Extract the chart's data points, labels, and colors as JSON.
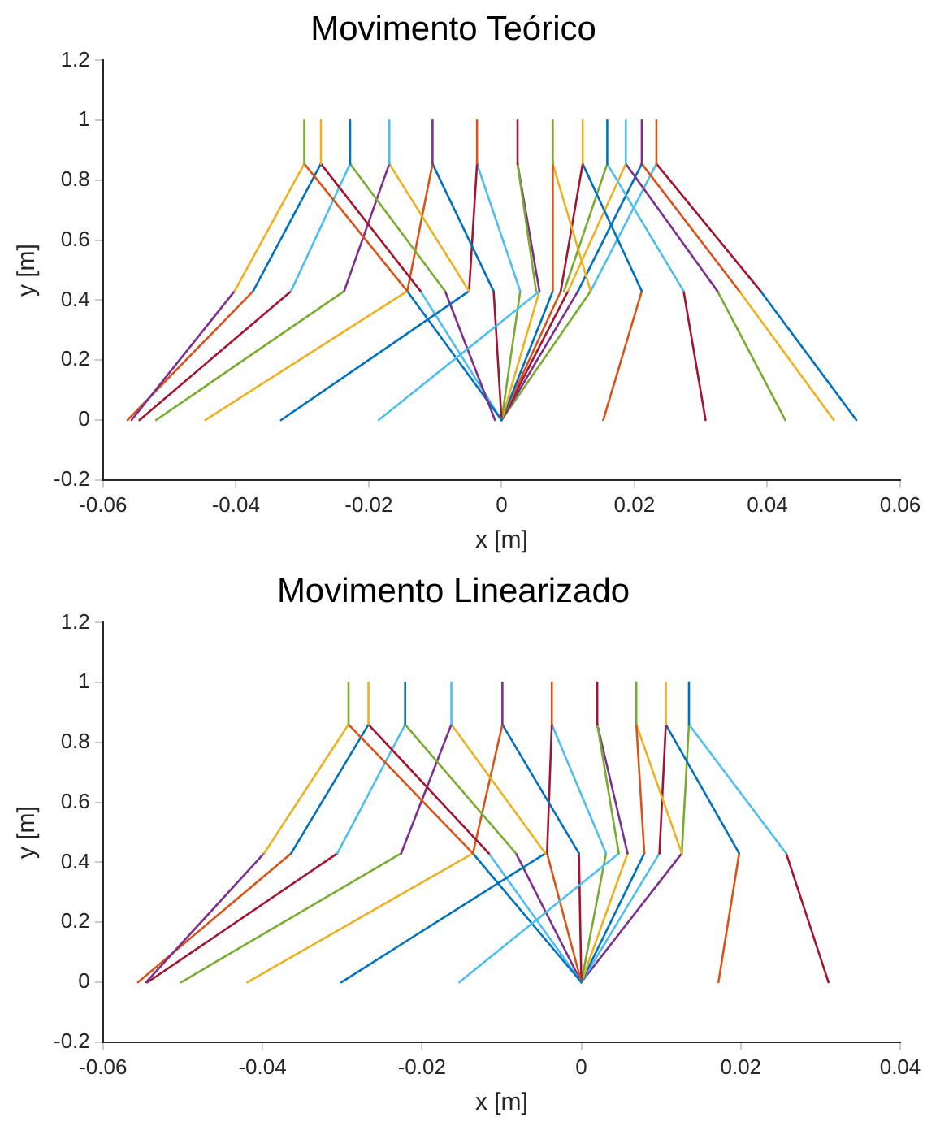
{
  "chart_data": [
    {
      "type": "line",
      "title": "Movimento Teórico",
      "xlabel": "x [m]",
      "ylabel": "y [m]",
      "xlim": [
        -0.06,
        0.06
      ],
      "xticks": [
        -0.06,
        -0.04,
        -0.02,
        0,
        0.02,
        0.04,
        0.06
      ],
      "ylim": [
        -0.2,
        1.2
      ],
      "yticks": [
        -0.2,
        0,
        0.2,
        0.4,
        0.6,
        0.8,
        1,
        1.2
      ],
      "grid": false,
      "legend": false,
      "marker": "none",
      "line_style": "solid",
      "series": [
        {
          "color": "#77ac30",
          "x": [
            -0.0297,
            -0.0297
          ],
          "values": [
            1,
            0.855
          ]
        },
        {
          "color": "#edb120",
          "x": [
            -0.0272,
            -0.0272
          ],
          "values": [
            1,
            0.855
          ]
        },
        {
          "color": "#0072bd",
          "x": [
            -0.0228,
            -0.0228
          ],
          "values": [
            1,
            0.855
          ]
        },
        {
          "color": "#4dbeee",
          "x": [
            -0.0169,
            -0.0169
          ],
          "values": [
            1,
            0.855
          ]
        },
        {
          "color": "#7e2f8e",
          "x": [
            -0.0104,
            -0.0104
          ],
          "values": [
            1,
            0.855
          ]
        },
        {
          "color": "#d95319",
          "x": [
            -0.0037,
            -0.0037
          ],
          "values": [
            1,
            0.855
          ]
        },
        {
          "color": "#a2142f",
          "x": [
            0.0024,
            0.0024
          ],
          "values": [
            1,
            0.855
          ]
        },
        {
          "color": "#77ac30",
          "x": [
            0.0077,
            0.0077
          ],
          "values": [
            1,
            0.855
          ]
        },
        {
          "color": "#edb120",
          "x": [
            0.0122,
            0.0122
          ],
          "values": [
            1,
            0.855
          ]
        },
        {
          "color": "#0072bd",
          "x": [
            0.0159,
            0.0159
          ],
          "values": [
            1,
            0.855
          ]
        },
        {
          "color": "#4dbeee",
          "x": [
            0.0187,
            0.0187
          ],
          "values": [
            1,
            0.855
          ]
        },
        {
          "color": "#7e2f8e",
          "x": [
            0.0211,
            0.0211
          ],
          "values": [
            1,
            0.855
          ]
        },
        {
          "color": "#d95319",
          "x": [
            0.0233,
            0.0233
          ],
          "values": [
            1,
            0.855
          ]
        },
        {
          "color": "#edb120",
          "x": [
            -0.0297,
            -0.0402
          ],
          "values": [
            0.855,
            0.43
          ]
        },
        {
          "color": "#d95319",
          "x": [
            -0.0297,
            -0.0142
          ],
          "values": [
            0.855,
            0.43
          ]
        },
        {
          "color": "#0072bd",
          "x": [
            -0.0272,
            -0.0374
          ],
          "values": [
            0.855,
            0.43
          ]
        },
        {
          "color": "#a2142f",
          "x": [
            -0.0272,
            -0.0122
          ],
          "values": [
            0.855,
            0.43
          ]
        },
        {
          "color": "#4dbeee",
          "x": [
            -0.0228,
            -0.0317
          ],
          "values": [
            0.855,
            0.43
          ]
        },
        {
          "color": "#77ac30",
          "x": [
            -0.0228,
            -0.0085
          ],
          "values": [
            0.855,
            0.43
          ]
        },
        {
          "color": "#7e2f8e",
          "x": [
            -0.0169,
            -0.0237
          ],
          "values": [
            0.855,
            0.43
          ]
        },
        {
          "color": "#edb120",
          "x": [
            -0.0169,
            -0.0049
          ],
          "values": [
            0.855,
            0.43
          ]
        },
        {
          "color": "#d95319",
          "x": [
            -0.0104,
            -0.0142
          ],
          "values": [
            0.855,
            0.43
          ]
        },
        {
          "color": "#0072bd",
          "x": [
            -0.0104,
            -0.0012
          ],
          "values": [
            0.855,
            0.43
          ]
        },
        {
          "color": "#a2142f",
          "x": [
            -0.0037,
            -0.0049
          ],
          "values": [
            0.855,
            0.43
          ]
        },
        {
          "color": "#4dbeee",
          "x": [
            -0.0037,
            0.0028
          ],
          "values": [
            0.855,
            0.43
          ]
        },
        {
          "color": "#77ac30",
          "x": [
            0.0024,
            0.0052
          ],
          "values": [
            0.855,
            0.43
          ]
        },
        {
          "color": "#7e2f8e",
          "x": [
            0.0024,
            0.0057
          ],
          "values": [
            0.855,
            0.43
          ]
        },
        {
          "color": "#d95319",
          "x": [
            0.0077,
            0.0077
          ],
          "values": [
            0.855,
            0.43
          ]
        },
        {
          "color": "#edb120",
          "x": [
            0.0077,
            0.0134
          ],
          "values": [
            0.855,
            0.43
          ]
        },
        {
          "color": "#a2142f",
          "x": [
            0.0122,
            0.0089
          ],
          "values": [
            0.855,
            0.43
          ]
        },
        {
          "color": "#0072bd",
          "x": [
            0.0122,
            0.0211
          ],
          "values": [
            0.855,
            0.43
          ]
        },
        {
          "color": "#77ac30",
          "x": [
            0.0159,
            0.0094
          ],
          "values": [
            0.855,
            0.43
          ]
        },
        {
          "color": "#4dbeee",
          "x": [
            0.0159,
            0.0274
          ],
          "values": [
            0.855,
            0.43
          ]
        },
        {
          "color": "#edb120",
          "x": [
            0.0187,
            0.01
          ],
          "values": [
            0.855,
            0.43
          ]
        },
        {
          "color": "#7e2f8e",
          "x": [
            0.0187,
            0.0325
          ],
          "values": [
            0.855,
            0.43
          ]
        },
        {
          "color": "#0072bd",
          "x": [
            0.0211,
            0.0115
          ],
          "values": [
            0.855,
            0.43
          ]
        },
        {
          "color": "#d95319",
          "x": [
            0.0211,
            0.0358
          ],
          "values": [
            0.855,
            0.43
          ]
        },
        {
          "color": "#4dbeee",
          "x": [
            0.0233,
            0.0134
          ],
          "values": [
            0.855,
            0.43
          ]
        },
        {
          "color": "#a2142f",
          "x": [
            0.0233,
            0.039
          ],
          "values": [
            0.855,
            0.43
          ]
        },
        {
          "color": "#7e2f8e",
          "x": [
            -0.0402,
            -0.0557
          ],
          "values": [
            0.43,
            0
          ]
        },
        {
          "color": "#d95319",
          "x": [
            -0.0374,
            -0.0563
          ],
          "values": [
            0.43,
            0
          ]
        },
        {
          "color": "#a2142f",
          "x": [
            -0.0317,
            -0.0545
          ],
          "values": [
            0.43,
            0
          ]
        },
        {
          "color": "#77ac30",
          "x": [
            -0.0237,
            -0.052
          ],
          "values": [
            0.43,
            0
          ]
        },
        {
          "color": "#edb120",
          "x": [
            -0.0142,
            -0.0446
          ],
          "values": [
            0.43,
            0
          ]
        },
        {
          "color": "#0072bd",
          "x": [
            -0.0049,
            -0.0332
          ],
          "values": [
            0.43,
            0
          ]
        },
        {
          "color": "#4dbeee",
          "x": [
            0.0057,
            -0.0185
          ],
          "values": [
            0.43,
            0
          ]
        },
        {
          "color": "#7e2f8e",
          "x": [
            -0.0085,
            -0.001
          ],
          "values": [
            0.43,
            0
          ]
        },
        {
          "color": "#0072bd",
          "x": [
            -0.0142,
            0
          ],
          "values": [
            0.43,
            0
          ]
        },
        {
          "color": "#4dbeee",
          "x": [
            -0.0122,
            0
          ],
          "values": [
            0.43,
            0
          ]
        },
        {
          "color": "#a2142f",
          "x": [
            -0.0012,
            0
          ],
          "values": [
            0.43,
            0
          ]
        },
        {
          "color": "#77ac30",
          "x": [
            0.0028,
            0
          ],
          "values": [
            0.43,
            0
          ]
        },
        {
          "color": "#edb120",
          "x": [
            0.0057,
            0
          ],
          "values": [
            0.43,
            0
          ]
        },
        {
          "color": "#0072bd",
          "x": [
            0.0077,
            0
          ],
          "values": [
            0.43,
            0
          ]
        },
        {
          "color": "#d95319",
          "x": [
            0.0089,
            0
          ],
          "values": [
            0.43,
            0
          ]
        },
        {
          "color": "#a2142f",
          "x": [
            0.01,
            0
          ],
          "values": [
            0.43,
            0
          ]
        },
        {
          "color": "#7e2f8e",
          "x": [
            0.0115,
            0
          ],
          "values": [
            0.43,
            0
          ]
        },
        {
          "color": "#77ac30",
          "x": [
            0.0134,
            0
          ],
          "values": [
            0.43,
            0
          ]
        },
        {
          "color": "#d95319",
          "x": [
            0.0211,
            0.0153
          ],
          "values": [
            0.43,
            0
          ]
        },
        {
          "color": "#a2142f",
          "x": [
            0.0274,
            0.0307
          ],
          "values": [
            0.43,
            0
          ]
        },
        {
          "color": "#77ac30",
          "x": [
            0.0325,
            0.0427
          ],
          "values": [
            0.43,
            0
          ]
        },
        {
          "color": "#edb120",
          "x": [
            0.0358,
            0.05
          ],
          "values": [
            0.43,
            0
          ]
        },
        {
          "color": "#0072bd",
          "x": [
            0.039,
            0.0534
          ],
          "values": [
            0.43,
            0
          ]
        }
      ]
    },
    {
      "type": "line",
      "title": "Movimento Linearizado",
      "xlabel": "x [m]",
      "ylabel": "y [m]",
      "xlim": [
        -0.06,
        0.04
      ],
      "xticks": [
        -0.06,
        -0.04,
        -0.02,
        0,
        0.02,
        0.04
      ],
      "ylim": [
        -0.2,
        1.2
      ],
      "yticks": [
        -0.2,
        0,
        0.2,
        0.4,
        0.6,
        0.8,
        1,
        1.2
      ],
      "grid": false,
      "legend": false,
      "marker": "none",
      "line_style": "solid",
      "series": [
        {
          "color": "#77ac30",
          "x": [
            -0.0292,
            -0.0292
          ],
          "values": [
            1,
            0.86
          ]
        },
        {
          "color": "#edb120",
          "x": [
            -0.0267,
            -0.0267
          ],
          "values": [
            1,
            0.86
          ]
        },
        {
          "color": "#0072bd",
          "x": [
            -0.0221,
            -0.0221
          ],
          "values": [
            1,
            0.86
          ]
        },
        {
          "color": "#4dbeee",
          "x": [
            -0.0163,
            -0.0163
          ],
          "values": [
            1,
            0.86
          ]
        },
        {
          "color": "#7e2f8e",
          "x": [
            -0.0099,
            -0.0099
          ],
          "values": [
            1,
            0.86
          ]
        },
        {
          "color": "#d95319",
          "x": [
            -0.0037,
            -0.0037
          ],
          "values": [
            1,
            0.86
          ]
        },
        {
          "color": "#a2142f",
          "x": [
            0.002,
            0.002
          ],
          "values": [
            1,
            0.86
          ]
        },
        {
          "color": "#77ac30",
          "x": [
            0.0069,
            0.0069
          ],
          "values": [
            1,
            0.86
          ]
        },
        {
          "color": "#edb120",
          "x": [
            0.0106,
            0.0106
          ],
          "values": [
            1,
            0.86
          ]
        },
        {
          "color": "#0072bd",
          "x": [
            0.0135,
            0.0135
          ],
          "values": [
            1,
            0.86
          ]
        },
        {
          "color": "#edb120",
          "x": [
            -0.0292,
            -0.0398
          ],
          "values": [
            0.86,
            0.43
          ]
        },
        {
          "color": "#d95319",
          "x": [
            -0.0292,
            -0.0136
          ],
          "values": [
            0.86,
            0.43
          ]
        },
        {
          "color": "#0072bd",
          "x": [
            -0.0267,
            -0.0364
          ],
          "values": [
            0.86,
            0.43
          ]
        },
        {
          "color": "#a2142f",
          "x": [
            -0.0267,
            -0.0116
          ],
          "values": [
            0.86,
            0.43
          ]
        },
        {
          "color": "#4dbeee",
          "x": [
            -0.0221,
            -0.0306
          ],
          "values": [
            0.86,
            0.43
          ]
        },
        {
          "color": "#77ac30",
          "x": [
            -0.0221,
            -0.0082
          ],
          "values": [
            0.86,
            0.43
          ]
        },
        {
          "color": "#7e2f8e",
          "x": [
            -0.0163,
            -0.0226
          ],
          "values": [
            0.86,
            0.43
          ]
        },
        {
          "color": "#edb120",
          "x": [
            -0.0163,
            -0.0045
          ],
          "values": [
            0.86,
            0.43
          ]
        },
        {
          "color": "#d95319",
          "x": [
            -0.0099,
            -0.0136
          ],
          "values": [
            0.86,
            0.43
          ]
        },
        {
          "color": "#0072bd",
          "x": [
            -0.0099,
            -0.0003
          ],
          "values": [
            0.86,
            0.43
          ]
        },
        {
          "color": "#a2142f",
          "x": [
            -0.0037,
            -0.0043
          ],
          "values": [
            0.86,
            0.43
          ]
        },
        {
          "color": "#4dbeee",
          "x": [
            -0.0037,
            0.0031
          ],
          "values": [
            0.86,
            0.43
          ]
        },
        {
          "color": "#77ac30",
          "x": [
            0.002,
            0.0047
          ],
          "values": [
            0.86,
            0.43
          ]
        },
        {
          "color": "#7e2f8e",
          "x": [
            0.002,
            0.0058
          ],
          "values": [
            0.86,
            0.43
          ]
        },
        {
          "color": "#d95319",
          "x": [
            0.0069,
            0.0079
          ],
          "values": [
            0.86,
            0.43
          ]
        },
        {
          "color": "#edb120",
          "x": [
            0.0069,
            0.0126
          ],
          "values": [
            0.86,
            0.43
          ]
        },
        {
          "color": "#a2142f",
          "x": [
            0.0106,
            0.0098
          ],
          "values": [
            0.86,
            0.43
          ]
        },
        {
          "color": "#0072bd",
          "x": [
            0.0106,
            0.0198
          ],
          "values": [
            0.86,
            0.43
          ]
        },
        {
          "color": "#77ac30",
          "x": [
            0.0135,
            0.0126
          ],
          "values": [
            0.86,
            0.43
          ]
        },
        {
          "color": "#4dbeee",
          "x": [
            0.0135,
            0.0257
          ],
          "values": [
            0.86,
            0.43
          ]
        },
        {
          "color": "#7e2f8e",
          "x": [
            -0.0398,
            -0.0546
          ],
          "values": [
            0.43,
            0
          ]
        },
        {
          "color": "#d95319",
          "x": [
            -0.0364,
            -0.0556
          ],
          "values": [
            0.43,
            0
          ]
        },
        {
          "color": "#a2142f",
          "x": [
            -0.0306,
            -0.0544
          ],
          "values": [
            0.43,
            0
          ]
        },
        {
          "color": "#77ac30",
          "x": [
            -0.0226,
            -0.0502
          ],
          "values": [
            0.43,
            0
          ]
        },
        {
          "color": "#edb120",
          "x": [
            -0.0136,
            -0.0419
          ],
          "values": [
            0.43,
            0
          ]
        },
        {
          "color": "#0072bd",
          "x": [
            -0.0045,
            -0.0301
          ],
          "values": [
            0.43,
            0
          ]
        },
        {
          "color": "#4dbeee",
          "x": [
            0.0047,
            -0.0153
          ],
          "values": [
            0.43,
            0
          ]
        },
        {
          "color": "#0072bd",
          "x": [
            -0.0136,
            0
          ],
          "values": [
            0.43,
            0
          ]
        },
        {
          "color": "#4dbeee",
          "x": [
            -0.0116,
            0
          ],
          "values": [
            0.43,
            0
          ]
        },
        {
          "color": "#7e2f8e",
          "x": [
            -0.0082,
            0
          ],
          "values": [
            0.43,
            0
          ]
        },
        {
          "color": "#d95319",
          "x": [
            -0.0043,
            0
          ],
          "values": [
            0.43,
            0
          ]
        },
        {
          "color": "#a2142f",
          "x": [
            -0.0003,
            0
          ],
          "values": [
            0.43,
            0
          ]
        },
        {
          "color": "#77ac30",
          "x": [
            0.0031,
            0
          ],
          "values": [
            0.43,
            0
          ]
        },
        {
          "color": "#edb120",
          "x": [
            0.0058,
            0
          ],
          "values": [
            0.43,
            0
          ]
        },
        {
          "color": "#0072bd",
          "x": [
            0.0079,
            0
          ],
          "values": [
            0.43,
            0
          ]
        },
        {
          "color": "#4dbeee",
          "x": [
            0.0098,
            0
          ],
          "values": [
            0.43,
            0
          ]
        },
        {
          "color": "#7e2f8e",
          "x": [
            0.0126,
            0
          ],
          "values": [
            0.43,
            0
          ]
        },
        {
          "color": "#d95319",
          "x": [
            0.0198,
            0.0172
          ],
          "values": [
            0.43,
            0
          ]
        },
        {
          "color": "#a2142f",
          "x": [
            0.0257,
            0.031
          ],
          "values": [
            0.43,
            0
          ]
        }
      ]
    }
  ]
}
